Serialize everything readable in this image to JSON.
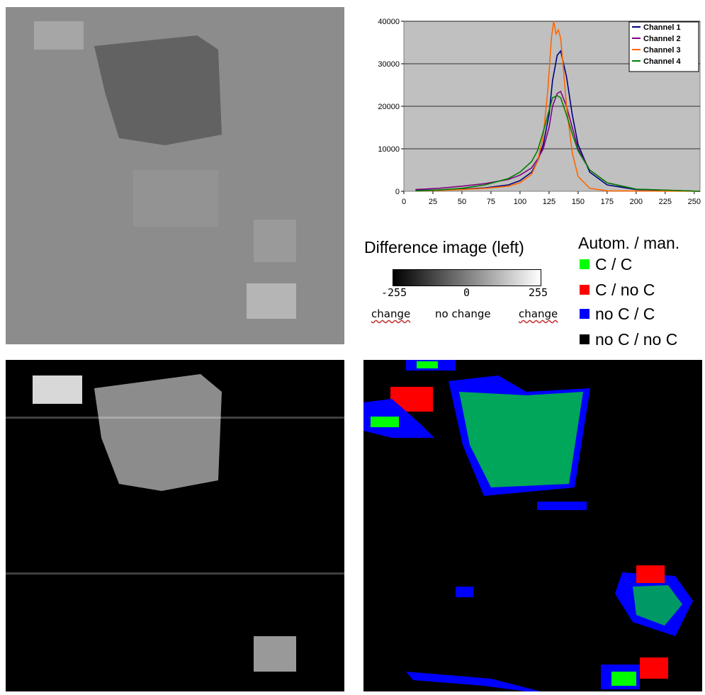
{
  "chart_data": {
    "type": "line",
    "title": "",
    "xlabel": "",
    "ylabel": "",
    "xlim": [
      0,
      255
    ],
    "ylim": [
      0,
      40000
    ],
    "xticks": [
      "0",
      "25",
      "50",
      "75",
      "100",
      "125",
      "150",
      "175",
      "200",
      "225",
      "250"
    ],
    "yticks": [
      "0",
      "10000",
      "20000",
      "30000",
      "40000"
    ],
    "background": "#c0c0c0",
    "grid": true,
    "legend_position": "top-right",
    "series": [
      {
        "name": "Channel 1",
        "color": "#000080",
        "x": [
          10,
          30,
          50,
          70,
          90,
          100,
          110,
          115,
          120,
          125,
          128,
          132,
          135,
          140,
          145,
          150,
          160,
          175,
          200,
          255
        ],
        "y": [
          200,
          300,
          500,
          800,
          1500,
          2500,
          4500,
          7000,
          11000,
          18000,
          26000,
          32000,
          33000,
          27000,
          18000,
          11000,
          4500,
          1500,
          400,
          0
        ]
      },
      {
        "name": "Channel 2",
        "color": "#800080",
        "x": [
          10,
          30,
          50,
          70,
          90,
          100,
          110,
          115,
          120,
          125,
          128,
          132,
          135,
          140,
          145,
          150,
          160,
          175,
          200,
          255
        ],
        "y": [
          400,
          700,
          1200,
          1800,
          2800,
          3800,
          5500,
          7500,
          10000,
          15000,
          20000,
          23000,
          23500,
          20000,
          15000,
          10000,
          5000,
          2000,
          500,
          0
        ]
      },
      {
        "name": "Channel 3",
        "color": "#ff6600",
        "x": [
          10,
          30,
          50,
          70,
          90,
          100,
          110,
          115,
          120,
          124,
          127,
          129,
          131,
          133,
          135,
          137,
          140,
          145,
          150,
          160,
          175,
          255
        ],
        "y": [
          100,
          200,
          400,
          700,
          1200,
          2000,
          4000,
          7000,
          13000,
          24000,
          36000,
          40000,
          37000,
          38000,
          36000,
          30000,
          20000,
          9000,
          3500,
          700,
          100,
          0
        ]
      },
      {
        "name": "Channel 4",
        "color": "#008000",
        "x": [
          10,
          30,
          50,
          70,
          90,
          100,
          110,
          115,
          120,
          125,
          128,
          132,
          135,
          140,
          145,
          150,
          160,
          175,
          200,
          255
        ],
        "y": [
          100,
          300,
          700,
          1500,
          3000,
          4500,
          7000,
          9500,
          14000,
          19000,
          22000,
          22500,
          22000,
          18000,
          13500,
          9500,
          5000,
          2000,
          500,
          0
        ]
      }
    ]
  },
  "colorbar": {
    "title": "Difference image (left)",
    "ticks": [
      "-255",
      "0",
      "255"
    ],
    "sublabels": [
      "change",
      "no change",
      "change"
    ]
  },
  "class_legend": {
    "title": "Autom. / man.",
    "items": [
      {
        "label": "C / C",
        "color": "#00ff00"
      },
      {
        "label": "C / no C",
        "color": "#ff0000"
      },
      {
        "label": "no C / C",
        "color": "#0000ff"
      },
      {
        "label": "no C / no C",
        "color": "#000000"
      }
    ]
  }
}
